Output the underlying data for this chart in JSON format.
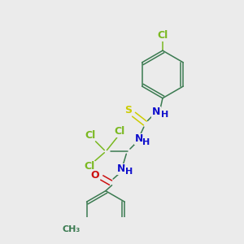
{
  "bg_color": "#ebebeb",
  "atom_colors": {
    "C": "#3a7a50",
    "Cl": "#7ab820",
    "N": "#1010cc",
    "O": "#cc1010",
    "S": "#cccc00",
    "H": "#1010cc"
  },
  "bond_color": "#3a7a50",
  "lw": 1.1
}
